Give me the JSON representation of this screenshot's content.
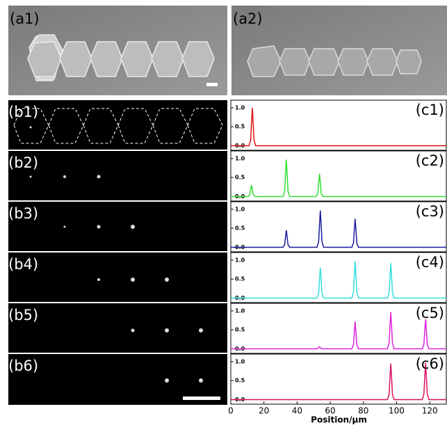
{
  "panels": {
    "a1": "(a1)",
    "a2": "(a2)",
    "b1": "(b1)",
    "b2": "(b2)",
    "b3": "(b3)",
    "b4": "(b4)",
    "b5": "(b5)",
    "b6": "(b6)"
  },
  "chart_data": [
    {
      "type": "line",
      "title": "(c1)",
      "xlim": [
        0,
        130
      ],
      "ylim": [
        -0.12,
        1.2
      ],
      "yticks": [
        {
          "value": 0,
          "label": "0.0"
        },
        {
          "value": 0.5,
          "label": "0.5"
        },
        {
          "value": 1,
          "label": "1.0"
        }
      ],
      "x": [
        0,
        11,
        12,
        12.5,
        13,
        13.5,
        14,
        15,
        130
      ],
      "series": [
        {
          "color": "#e01010",
          "values": [
            0,
            0,
            0.15,
            0.6,
            1.0,
            0.6,
            0.15,
            0,
            0
          ]
        }
      ]
    },
    {
      "type": "line",
      "title": "(c2)",
      "xlim": [
        0,
        130
      ],
      "ylim": [
        -0.12,
        1.2
      ],
      "yticks": [
        {
          "value": 0,
          "label": "0.0"
        },
        {
          "value": 0.5,
          "label": "0.5"
        },
        {
          "value": 1,
          "label": "1.0"
        }
      ],
      "x": [
        0,
        10.5,
        11.5,
        12,
        12.5,
        13,
        13.5,
        14.5,
        31.5,
        32.5,
        33,
        33.5,
        34,
        34.5,
        35.5,
        51.5,
        52.5,
        53,
        53.5,
        54,
        54.5,
        55.5,
        130
      ],
      "series": [
        {
          "color": "#33dd33",
          "values": [
            0,
            0,
            0.05,
            0.18,
            0.3,
            0.18,
            0.05,
            0,
            0,
            0.15,
            0.58,
            0.97,
            0.58,
            0.15,
            0,
            0,
            0.09,
            0.36,
            0.6,
            0.36,
            0.09,
            0,
            0
          ]
        }
      ]
    },
    {
      "type": "line",
      "title": "(c3)",
      "xlim": [
        0,
        130
      ],
      "ylim": [
        -0.12,
        1.2
      ],
      "yticks": [
        {
          "value": 0,
          "label": "0.0"
        },
        {
          "value": 0.5,
          "label": "0.5"
        },
        {
          "value": 1,
          "label": "1.0"
        }
      ],
      "x": [
        0,
        31.5,
        32.5,
        33,
        33.5,
        34,
        34.5,
        35.5,
        52,
        53,
        53.5,
        54,
        54.5,
        55,
        56,
        73,
        74,
        74.5,
        75,
        75.5,
        76,
        77,
        130
      ],
      "series": [
        {
          "color": "#1a1aa0",
          "values": [
            0,
            0,
            0.07,
            0.27,
            0.45,
            0.27,
            0.07,
            0,
            0,
            0.15,
            0.58,
            0.97,
            0.58,
            0.15,
            0,
            0,
            0.11,
            0.45,
            0.75,
            0.45,
            0.11,
            0,
            0
          ]
        }
      ]
    },
    {
      "type": "line",
      "title": "(c4)",
      "xlim": [
        0,
        130
      ],
      "ylim": [
        -0.12,
        1.2
      ],
      "yticks": [
        {
          "value": 0,
          "label": "0.0"
        },
        {
          "value": 0.5,
          "label": "0.5"
        },
        {
          "value": 1,
          "label": "1.0"
        }
      ],
      "x": [
        0,
        52,
        53,
        53.5,
        54,
        54.5,
        55,
        56,
        73,
        74,
        74.5,
        75,
        75.5,
        76,
        77,
        94.5,
        95.5,
        96,
        96.5,
        97,
        97.5,
        98.5,
        130
      ],
      "series": [
        {
          "color": "#33dddd",
          "values": [
            0,
            0,
            0.12,
            0.48,
            0.8,
            0.48,
            0.12,
            0,
            0,
            0.15,
            0.58,
            0.97,
            0.58,
            0.15,
            0,
            0,
            0.14,
            0.55,
            0.92,
            0.55,
            0.14,
            0,
            0
          ]
        }
      ]
    },
    {
      "type": "line",
      "title": "(c5)",
      "xlim": [
        0,
        130
      ],
      "ylim": [
        -0.12,
        1.2
      ],
      "yticks": [
        {
          "value": 0,
          "label": "0.0"
        },
        {
          "value": 0.5,
          "label": "0.5"
        },
        {
          "value": 1,
          "label": "1.0"
        }
      ],
      "x": [
        0,
        51.5,
        52.5,
        53,
        53.5,
        54,
        54.5,
        55.5,
        73,
        74,
        74.5,
        75,
        75.5,
        76,
        77,
        94.5,
        95.5,
        96,
        96.5,
        97,
        97.5,
        98.5,
        115.5,
        116.5,
        117,
        117.5,
        118,
        118.5,
        119.5,
        130
      ],
      "series": [
        {
          "color": "#dd22dd",
          "values": [
            0,
            0,
            0.01,
            0.03,
            0.05,
            0.03,
            0.01,
            0,
            0,
            0.11,
            0.43,
            0.72,
            0.43,
            0.11,
            0,
            0,
            0.15,
            0.58,
            0.97,
            0.58,
            0.15,
            0,
            0,
            0.12,
            0.47,
            0.78,
            0.47,
            0.12,
            0,
            0
          ]
        }
      ]
    },
    {
      "type": "line",
      "title": "(c6)",
      "xlim": [
        0,
        130
      ],
      "ylim": [
        -0.12,
        1.2
      ],
      "yticks": [
        {
          "value": 0,
          "label": "0.0"
        },
        {
          "value": 0.5,
          "label": "0.5"
        },
        {
          "value": 1,
          "label": "1.0"
        }
      ],
      "xticks": [
        0,
        20,
        40,
        60,
        80,
        100,
        120
      ],
      "xlabel": "Position/μm",
      "x": [
        0,
        94.5,
        95.5,
        96,
        96.5,
        97,
        97.5,
        98.5,
        115.5,
        116.5,
        117,
        117.5,
        118,
        118.5,
        119.5,
        130
      ],
      "series": [
        {
          "color": "#dd1060",
          "values": [
            0,
            0,
            0.14,
            0.57,
            0.95,
            0.57,
            0.14,
            0,
            0,
            0.15,
            0.58,
            0.97,
            0.58,
            0.15,
            0,
            0
          ]
        }
      ]
    }
  ]
}
